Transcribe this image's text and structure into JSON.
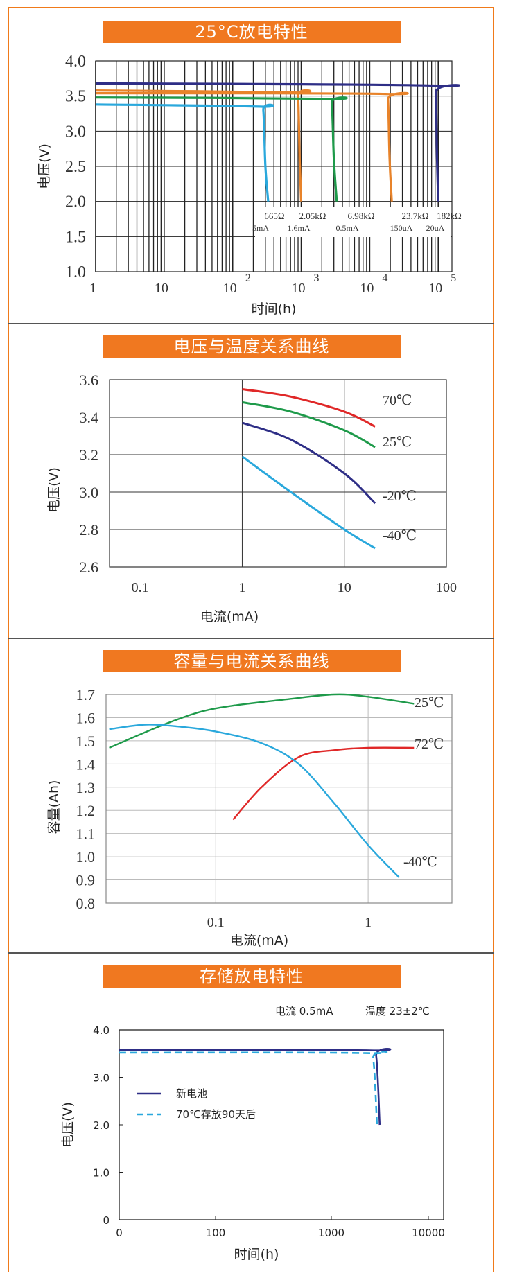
{
  "chart_data": [
    {
      "type": "line",
      "banner": "25°C放电特性",
      "xlabel": "时间(h)",
      "ylabel": "电压(V)",
      "xscale": "log",
      "ylim": [
        1.0,
        4.0
      ],
      "yticks": [
        "1.0",
        "1.5",
        "2.0",
        "2.5",
        "3.0",
        "3.5",
        "4.0"
      ],
      "xticks": [
        "1",
        "10",
        "10",
        "10",
        "10",
        "10"
      ],
      "xtick_exponents": [
        "",
        "",
        "2",
        "3",
        "4",
        "5"
      ],
      "grid": true,
      "series": [
        {
          "name": "665Ω 5mA",
          "label_top": "665Ω",
          "label_bottom": "5mA",
          "color": "#2aa8dc",
          "x": [
            1,
            250,
            280,
            300,
            330
          ],
          "y": [
            3.38,
            3.35,
            3.3,
            2.5,
            2.0
          ]
        },
        {
          "name": "2.05kΩ 1.6mA",
          "label_top": "2.05kΩ",
          "label_bottom": "1.6mA",
          "color": "#e8832a",
          "x": [
            1,
            800,
            900,
            950,
            1000
          ],
          "y": [
            3.58,
            3.55,
            3.5,
            2.6,
            2.0
          ]
        },
        {
          "name": "6.98kΩ 0.5mA",
          "label_top": "6.98kΩ",
          "label_bottom": "0.5mA",
          "color": "#1e9a4a",
          "x": [
            1,
            2500,
            2800,
            3000,
            3300
          ],
          "y": [
            3.48,
            3.46,
            3.4,
            2.6,
            2.0
          ]
        },
        {
          "name": "23.7kΩ 150uA",
          "label_top": "23.7kΩ",
          "label_bottom": "150uA",
          "color": "#e8832a",
          "x": [
            1,
            17000,
            18500,
            19500,
            21000
          ],
          "y": [
            3.54,
            3.53,
            3.45,
            2.6,
            2.0
          ]
        },
        {
          "name": "182kΩ 20uA",
          "label_top": "182kΩ",
          "label_bottom": "20uA",
          "color": "#2e2e86",
          "x": [
            1,
            85000,
            92000,
            96000,
            100000
          ],
          "y": [
            3.68,
            3.65,
            3.55,
            2.6,
            2.0
          ]
        }
      ]
    },
    {
      "type": "line",
      "banner": "电压与温度关系曲线",
      "xlabel": "电流(mA)",
      "ylabel": "电压(V)",
      "xscale": "log",
      "ylim": [
        2.6,
        3.6
      ],
      "yticks": [
        "2.6",
        "2.8",
        "3.0",
        "3.2",
        "3.4",
        "3.6"
      ],
      "xticks": [
        "0.1",
        "1",
        "10",
        "100"
      ],
      "grid": true,
      "series": [
        {
          "name": "70℃",
          "color": "#e02828",
          "x": [
            1,
            3,
            10,
            20
          ],
          "y": [
            3.55,
            3.51,
            3.43,
            3.35
          ]
        },
        {
          "name": "25℃",
          "color": "#1e9a4a",
          "x": [
            1,
            3,
            10,
            20
          ],
          "y": [
            3.48,
            3.43,
            3.33,
            3.24
          ]
        },
        {
          "name": "-20℃",
          "color": "#2e2e86",
          "x": [
            1,
            3,
            10,
            20
          ],
          "y": [
            3.37,
            3.28,
            3.1,
            2.94
          ]
        },
        {
          "name": "-40℃",
          "color": "#2aa8dc",
          "x": [
            1,
            3,
            10,
            20
          ],
          "y": [
            3.19,
            3.0,
            2.8,
            2.7
          ]
        }
      ]
    },
    {
      "type": "line",
      "banner": "容量与电流关系曲线",
      "xlabel": "电流(mA)",
      "ylabel": "容量(Ah)",
      "xscale": "log",
      "ylim": [
        0.8,
        1.7
      ],
      "yticks": [
        "0.8",
        "0.9",
        "1.0",
        "1.1",
        "1.2",
        "1.3",
        "1.4",
        "1.5",
        "1.6",
        "1.7"
      ],
      "xticks": [
        "0.1",
        "1"
      ],
      "grid": true,
      "series": [
        {
          "name": "25℃",
          "color": "#1e9a4a",
          "x": [
            0.02,
            0.05,
            0.1,
            0.3,
            0.6,
            1,
            2
          ],
          "y": [
            1.47,
            1.58,
            1.64,
            1.68,
            1.7,
            1.69,
            1.66
          ]
        },
        {
          "name": "72℃",
          "color": "#e02828",
          "x": [
            0.13,
            0.2,
            0.35,
            0.6,
            1,
            2
          ],
          "y": [
            1.16,
            1.3,
            1.43,
            1.46,
            1.47,
            1.47
          ]
        },
        {
          "name": "-40℃",
          "color": "#2aa8dc",
          "x": [
            0.02,
            0.035,
            0.06,
            0.1,
            0.2,
            0.35,
            0.6,
            1,
            1.6
          ],
          "y": [
            1.55,
            1.57,
            1.56,
            1.54,
            1.49,
            1.4,
            1.23,
            1.05,
            0.91
          ]
        }
      ]
    },
    {
      "type": "line",
      "banner": "存储放电特性",
      "xlabel": "时间(h)",
      "ylabel": "电压(V)",
      "conditions": [
        "电流 0.5mA",
        "温度 23±2℃"
      ],
      "ylim": [
        0,
        4.0
      ],
      "yticks": [
        "0",
        "1.0",
        "2.0",
        "3.0",
        "4.0"
      ],
      "xticks": [
        "0",
        "100",
        "1000",
        "10000"
      ],
      "grid": false,
      "series": [
        {
          "name": "新电池",
          "color": "#2e2e86",
          "dash": false,
          "x": [
            0,
            2500,
            2900,
            3150
          ],
          "y": [
            3.58,
            3.57,
            3.45,
            2.0
          ]
        },
        {
          "name": "70℃存放90天后",
          "color": "#2aa8dc",
          "dash": true,
          "x": [
            0,
            2300,
            2700,
            2950
          ],
          "y": [
            3.52,
            3.51,
            3.4,
            2.0
          ]
        }
      ]
    }
  ]
}
